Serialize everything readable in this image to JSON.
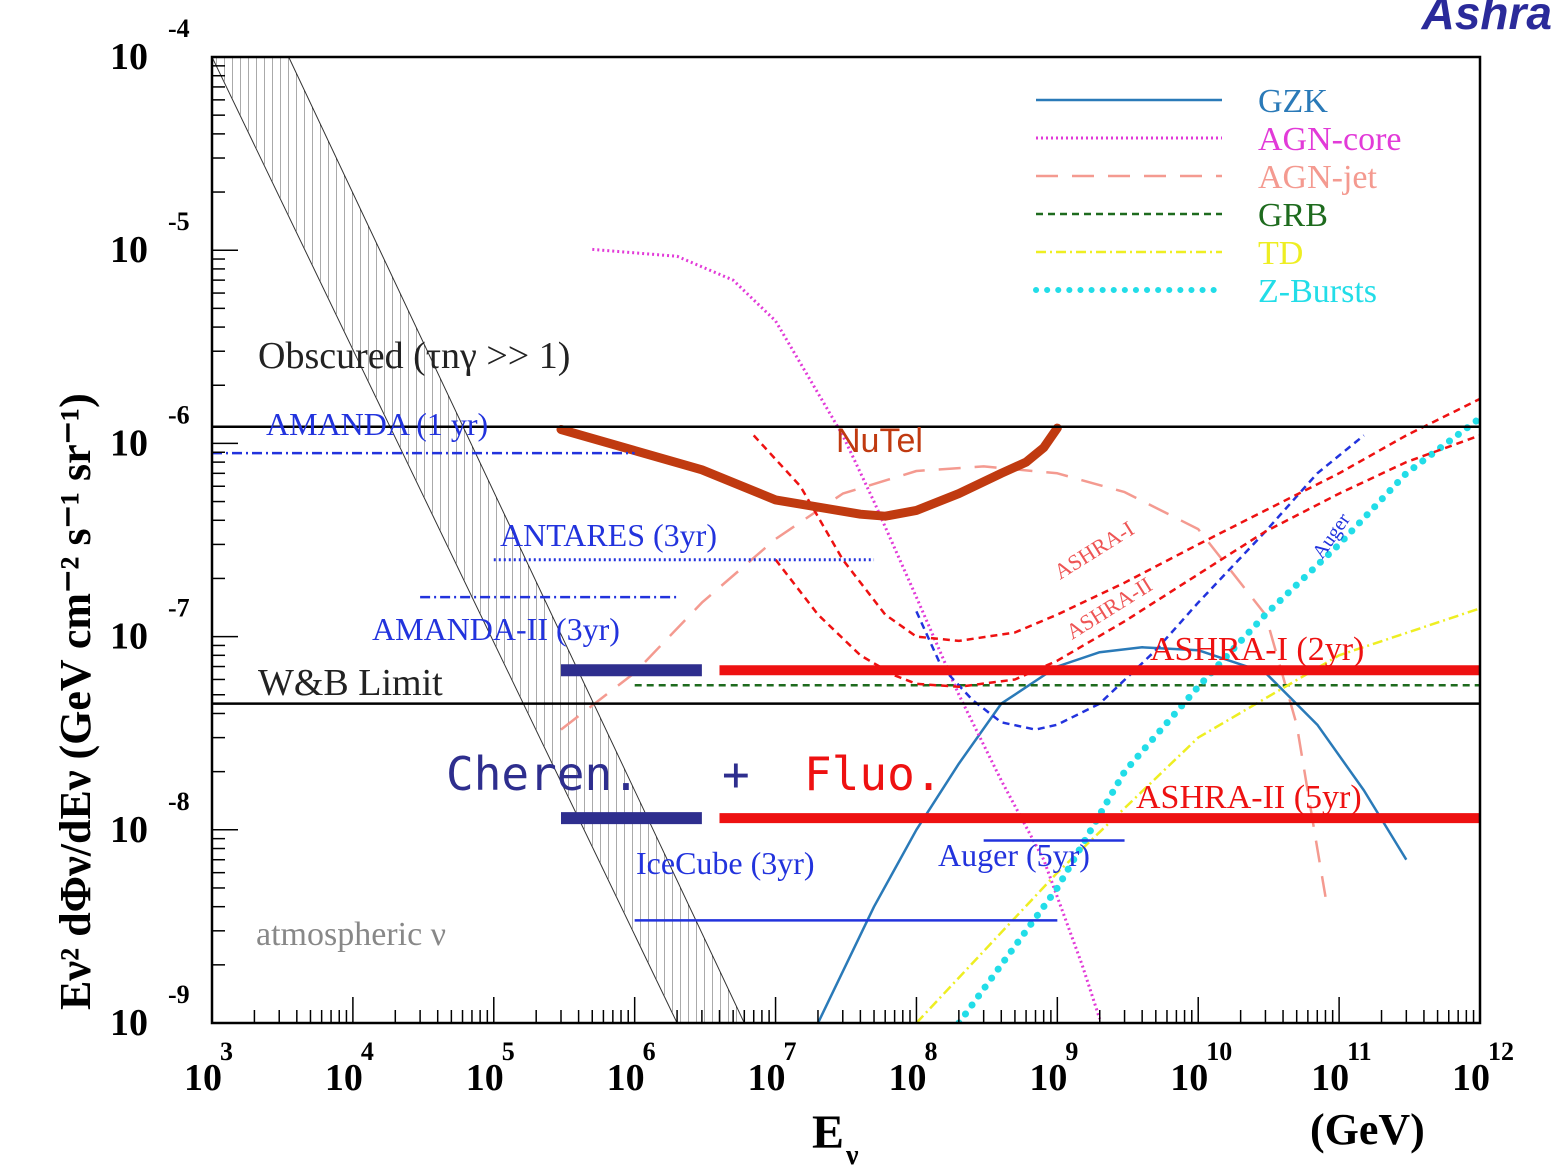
{
  "brand": "Ashra",
  "chart_data": {
    "type": "line",
    "title": "",
    "xlabel": "E",
    "xlabel_sub": "ν",
    "xunit": "(GeV)",
    "ylabel": "Eν² dΦν/dEν (GeV cm⁻² s⁻¹ sr⁻¹)",
    "xscale": "log",
    "yscale": "log",
    "xlim": [
      1000,
      1000000000000
    ],
    "ylim": [
      1e-09,
      0.0001
    ],
    "x_ticks": [
      {
        "base": "10",
        "exp": "3",
        "value": 1000
      },
      {
        "base": "10",
        "exp": "4",
        "value": 10000
      },
      {
        "base": "10",
        "exp": "5",
        "value": 100000
      },
      {
        "base": "10",
        "exp": "6",
        "value": 1000000
      },
      {
        "base": "10",
        "exp": "7",
        "value": 10000000
      },
      {
        "base": "10",
        "exp": "8",
        "value": 100000000
      },
      {
        "base": "10",
        "exp": "9",
        "value": 1000000000
      },
      {
        "base": "10",
        "exp": "10",
        "value": 10000000000
      },
      {
        "base": "10",
        "exp": "11",
        "value": 100000000000
      },
      {
        "base": "10",
        "exp": "12",
        "value": 1000000000000
      }
    ],
    "y_ticks": [
      {
        "base": "10",
        "exp": "-4",
        "value": 0.0001
      },
      {
        "base": "10",
        "exp": "-5",
        "value": 1e-05
      },
      {
        "base": "10",
        "exp": "-6",
        "value": 1e-06
      },
      {
        "base": "10",
        "exp": "-7",
        "value": 1e-07
      },
      {
        "base": "10",
        "exp": "-8",
        "value": 1e-08
      },
      {
        "base": "10",
        "exp": "-9",
        "value": 1e-09
      }
    ],
    "legend": {
      "placement": "top-right",
      "entries": [
        {
          "name": "GZK",
          "color": "#2a7ab8",
          "style": "solid"
        },
        {
          "name": "AGN-core",
          "color": "#e23ad8",
          "style": "dotted"
        },
        {
          "name": "AGN-jet",
          "color": "#f49a90",
          "style": "longdash"
        },
        {
          "name": "GRB",
          "color": "#1e6b1e",
          "style": "dashed"
        },
        {
          "name": "TD",
          "color": "#eeee22",
          "style": "dashdot"
        },
        {
          "name": "Z-Bursts",
          "color": "#22dde8",
          "style": "thickdot"
        }
      ]
    },
    "series": [
      {
        "name": "GZK",
        "color": "#2a7ab8",
        "style": "solid",
        "x": [
          20000000.0,
          50000000.0,
          100000000.0,
          200000000.0,
          400000000.0,
          1000000000.0,
          2000000000.0,
          4000000000.0,
          10000000000.0,
          30000000000.0,
          70000000000.0,
          150000000000.0,
          300000000000.0
        ],
        "y": [
          1e-09,
          4e-09,
          1e-08,
          2.2e-08,
          4.5e-08,
          7e-08,
          8.3e-08,
          8.8e-08,
          8.5e-08,
          6.5e-08,
          3.5e-08,
          1.6e-08,
          7e-09
        ]
      },
      {
        "name": "AGN-core",
        "color": "#e23ad8",
        "style": "dotted",
        "x": [
          500000,
          2000000.0,
          5000000.0,
          10000000.0,
          30000000.0,
          50000000.0,
          100000000.0,
          200000000.0,
          400000000.0,
          800000000.0,
          1500000000.0,
          2000000000.0
        ],
        "y": [
          1.01e-05,
          9.3e-06,
          7e-06,
          4.3e-06,
          1.1e-06,
          5e-07,
          1.6e-07,
          5e-08,
          1.8e-08,
          7e-09,
          2e-09,
          1.05e-09
        ]
      },
      {
        "name": "AGN-jet",
        "color": "#f49a90",
        "style": "longdash",
        "x": [
          300000,
          1000000.0,
          3000000.0,
          10000000.0,
          30000000.0,
          100000000.0,
          300000000.0,
          1000000000.0,
          3000000000.0,
          10000000000.0,
          30000000000.0,
          50000000000.0,
          70000000000.0,
          80000000000.0
        ],
        "y": [
          3.3e-08,
          6.5e-08,
          1.5e-07,
          3.2e-07,
          5.5e-07,
          7.2e-07,
          7.6e-07,
          7e-07,
          5.6e-07,
          3.6e-07,
          1.3e-07,
          3.5e-08,
          8e-09,
          4.5e-09
        ]
      },
      {
        "name": "GRB",
        "color": "#1e6b1e",
        "style": "dashed",
        "x": [
          1000000,
          1000000000000
        ],
        "y": [
          5.6e-08,
          5.6e-08
        ]
      },
      {
        "name": "TD",
        "color": "#eeee22",
        "style": "dashdot",
        "x": [
          100000000.0,
          1000000000.0,
          10000000000.0,
          100000000000.0,
          1000000000000.0
        ],
        "y": [
          1e-09,
          6e-09,
          3e-08,
          8e-08,
          1.4e-07
        ]
      },
      {
        "name": "Z-Bursts",
        "color": "#22dde8",
        "style": "thickdot",
        "x": [
          200000000.0,
          1000000000.0,
          3000000000.0,
          10000000000.0,
          30000000000.0,
          100000000000.0,
          300000000000.0,
          1000000000000.0
        ],
        "y": [
          1e-09,
          5e-09,
          2e-08,
          5.5e-08,
          1.3e-07,
          3e-07,
          7e-07,
          1.35e-06
        ]
      },
      {
        "name": "Auger",
        "color": "#2233dd",
        "style": "dashed",
        "x": [
          100000000.0,
          150000000.0,
          250000000.0,
          400000000.0,
          700000000.0,
          1000000000.0,
          2000000000.0,
          5000000000.0,
          10000000000.0,
          30000000000.0,
          70000000000.0,
          150000000000.0
        ],
        "y": [
          1.35e-07,
          7e-08,
          4.7e-08,
          3.6e-08,
          3.3e-08,
          3.5e-08,
          4.5e-08,
          8.5e-08,
          1.5e-07,
          3.5e-07,
          7e-07,
          1.1e-06
        ]
      },
      {
        "name": "ASHRA-I",
        "color": "#ee1111",
        "style": "dashed",
        "x": [
          7000000.0,
          15000000.0,
          30000000.0,
          60000000.0,
          100000000.0,
          200000000.0,
          500000000.0,
          1000000000.0,
          3000000000.0,
          10000000000.0,
          30000000000.0,
          100000000000.0,
          300000000000.0,
          1000000000000.0
        ],
        "y": [
          1.1e-06,
          6e-07,
          2.5e-07,
          1.3e-07,
          1e-07,
          9.5e-08,
          1.05e-07,
          1.3e-07,
          1.9e-07,
          3e-07,
          4.5e-07,
          7e-07,
          1.1e-06,
          1.7e-06
        ]
      },
      {
        "name": "ASHRA-II",
        "color": "#ee1111",
        "style": "dashed",
        "x": [
          10000000.0,
          20000000.0,
          40000000.0,
          70000000.0,
          100000000.0,
          200000000.0,
          500000000.0,
          1000000000.0,
          3000000000.0,
          10000000000.0,
          30000000000.0,
          100000000000.0,
          300000000000.0,
          1000000000000.0
        ],
        "y": [
          2.5e-07,
          1.3e-07,
          8e-08,
          6.3e-08,
          5.7e-08,
          5.5e-08,
          6e-08,
          7.5e-08,
          1.2e-07,
          2.1e-07,
          3.5e-07,
          5.5e-07,
          8e-07,
          1.1e-06
        ]
      },
      {
        "name": "NuTel",
        "color": "#c03a10",
        "style": "thick",
        "x": [
          300000,
          3000000.0,
          10000000.0,
          40000000.0,
          60000000.0,
          100000000.0,
          200000000.0,
          400000000.0,
          600000000.0,
          800000000.0,
          1000000000.0
        ],
        "y": [
          1.18e-06,
          7.3e-07,
          5.1e-07,
          4.3e-07,
          4.2e-07,
          4.5e-07,
          5.5e-07,
          7e-07,
          8e-07,
          9.5e-07,
          1.2e-06
        ]
      }
    ],
    "limits": [
      {
        "name": "AMANDA (1 yr)",
        "color": "#2233dd",
        "style": "dashdot",
        "x": [
          1000,
          1000000
        ],
        "y": 8.9e-07
      },
      {
        "name": "ANTARES (3yr)",
        "color": "#2233dd",
        "style": "dotted",
        "x": [
          100000,
          50000000
        ],
        "y": 2.5e-07
      },
      {
        "name": "AMANDA-II (3yr)",
        "color": "#2233dd",
        "style": "dashdot",
        "x": [
          30000,
          2000000
        ],
        "y": 1.6e-07
      },
      {
        "name": "IceCube (3yr)",
        "color": "#2233dd",
        "style": "solid",
        "x": [
          1000000,
          1000000000
        ],
        "y": 3.4e-09
      },
      {
        "name": "Auger (5yr)",
        "color": "#2233dd",
        "style": "solid",
        "x": [
          300000000,
          3000000000
        ],
        "y": 8.8e-09
      }
    ],
    "bands": [
      {
        "name": "ASHRA-I (2yr)",
        "cherenkov_x": [
          300000,
          3000000
        ],
        "fluo_x": [
          4000000,
          1000000000000
        ],
        "y": 6.7e-08
      },
      {
        "name": "ASHRA-II (5yr)",
        "cherenkov_x": [
          300000,
          3000000
        ],
        "fluo_x": [
          4000000,
          1000000000000
        ],
        "y": 1.15e-08
      }
    ],
    "boundaries": [
      {
        "name": "Obscured",
        "y": 1.22e-06
      },
      {
        "name": "W&B Limit",
        "y": 4.5e-08
      }
    ],
    "atmospheric_band": {
      "name": "atmospheric ν",
      "upper": [
        [
          1000,
          0.0001
        ],
        [
          2000000,
          1e-09
        ]
      ],
      "lower": [
        [
          3500,
          0.0001
        ],
        [
          6000000,
          1e-09
        ]
      ]
    },
    "annotations": [
      {
        "text": "Obscured (τnγ >> 1)",
        "color": "#222222"
      },
      {
        "text": "W&B Limit",
        "color": "#222222"
      },
      {
        "text": "atmospheric ν",
        "color": "#888888"
      },
      {
        "text": "AMANDA (1 yr)",
        "color": "#2233dd"
      },
      {
        "text": "ANTARES (3yr)",
        "color": "#2233dd"
      },
      {
        "text": "AMANDA-II (3yr)",
        "color": "#2233dd"
      },
      {
        "text": "IceCube (3yr)",
        "color": "#2233dd"
      },
      {
        "text": "Auger (5yr)",
        "color": "#2233dd"
      },
      {
        "text": "NuTel",
        "color": "#c03a10"
      },
      {
        "text": "ASHRA-I (2yr)",
        "color": "#ee1111"
      },
      {
        "text": "ASHRA-II (5yr)",
        "color": "#ee1111"
      },
      {
        "text": "ASHRA-I",
        "color": "#ee5555"
      },
      {
        "text": "ASHRA-II",
        "color": "#ee5555"
      },
      {
        "text": "Auger",
        "color": "#2233dd"
      },
      {
        "text": "Cheren.",
        "color": "#2e2e8e"
      },
      {
        "text": "+",
        "color": "#2e2e8e"
      },
      {
        "text": "Fluo.",
        "color": "#ee1111"
      }
    ]
  }
}
